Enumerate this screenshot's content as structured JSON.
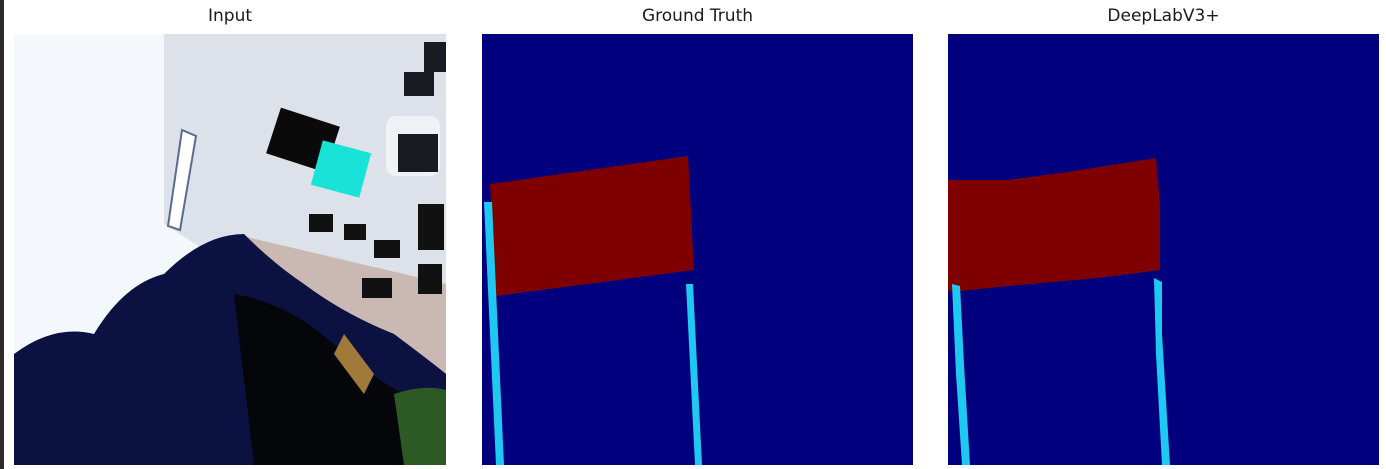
{
  "figure": {
    "panels": [
      {
        "title": "Input",
        "kind": "aerial-photo"
      },
      {
        "title": "Ground Truth",
        "kind": "segmentation-mask"
      },
      {
        "title": "DeepLabV3+",
        "kind": "segmentation-mask"
      }
    ],
    "colors": {
      "background_class": "#00007f",
      "red_class": "#7f0000",
      "cyan_class": "#1fc8f0",
      "photo_sky": "#f4f8fc",
      "photo_tree": "#0b1140",
      "vehicle_cyan": "#19e3d7"
    }
  }
}
